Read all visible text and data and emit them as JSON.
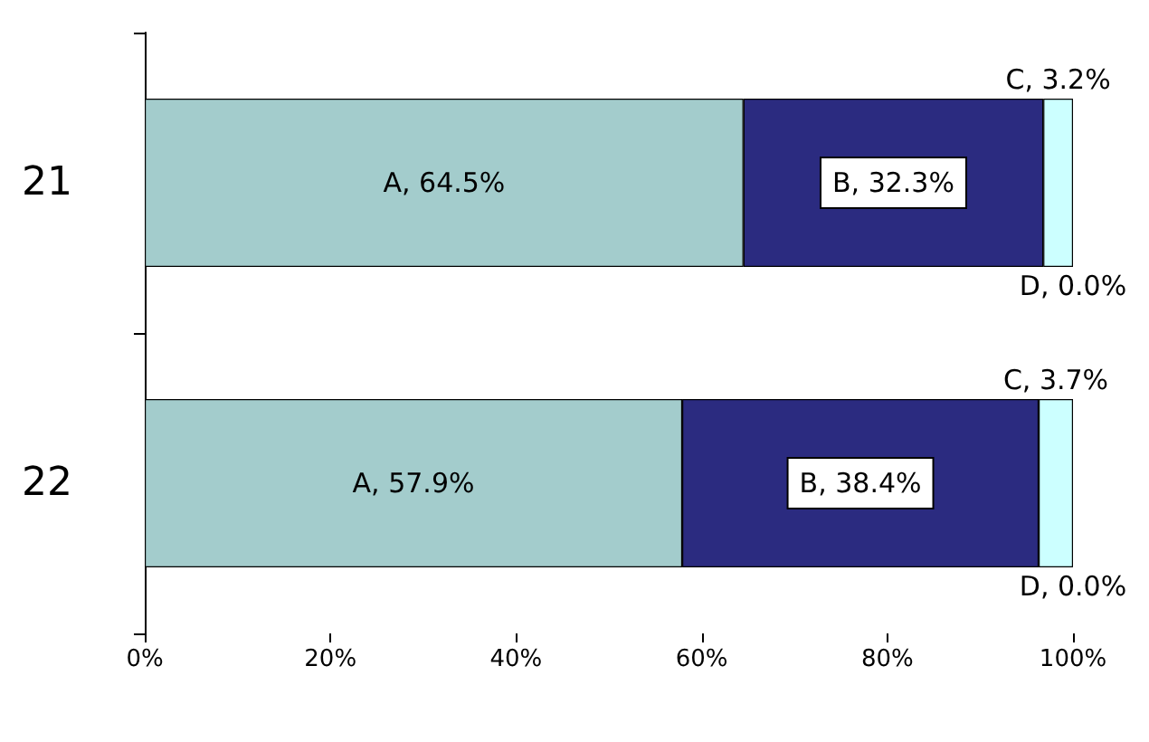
{
  "chart_data": {
    "type": "bar",
    "orientation": "horizontal",
    "stacked": true,
    "categories": [
      "21",
      "22"
    ],
    "series": [
      {
        "color": "#a3cccc",
        "values": [
          64.5,
          57.9
        ],
        "value_labels": [
          "A, 64.5%",
          "A, 57.9%"
        ]
      },
      {
        "color": "#2b2b80",
        "values": [
          32.3,
          38.4
        ],
        "value_labels": [
          "B, 32.3%",
          "B, 38.4%"
        ]
      },
      {
        "color": "#ccffff",
        "values": [
          3.2,
          3.7
        ],
        "value_labels": [
          "C, 3.2%",
          "C, 3.7%"
        ]
      },
      {
        "color": "#e6e6e6",
        "values": [
          0.0,
          0.0
        ],
        "value_labels": [
          "D, 0.0%",
          "D, 0.0%"
        ]
      }
    ],
    "xlim": [
      0,
      100
    ],
    "xticks": [
      {
        "value": 0,
        "label": "0%"
      },
      {
        "value": 20,
        "label": "20%"
      },
      {
        "value": 40,
        "label": "40%"
      },
      {
        "value": 60,
        "label": "60%"
      },
      {
        "value": 80,
        "label": "80%"
      },
      {
        "value": 100,
        "label": "100%"
      }
    ],
    "grid": false
  }
}
